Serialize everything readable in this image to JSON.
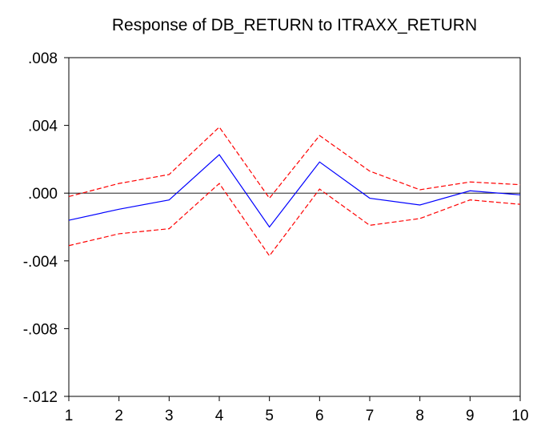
{
  "chart_data": {
    "type": "line",
    "title": "Response of DB_RETURN to ITRAXX_RETURN",
    "x": [
      1,
      2,
      3,
      4,
      5,
      6,
      7,
      8,
      9,
      10
    ],
    "series": [
      {
        "color": "#0000ff",
        "dashed": false,
        "values": [
          -0.0016,
          -0.00095,
          -0.0004,
          0.00227,
          -0.002,
          0.00184,
          -0.0003,
          -0.0007,
          0.00014,
          -0.0001
        ]
      },
      {
        "color": "#ff0000",
        "dashed": true,
        "values": [
          -0.0002,
          0.00057,
          0.0011,
          0.0039,
          -0.0003,
          0.0034,
          0.0013,
          0.0002,
          0.00066,
          0.0005
        ]
      },
      {
        "color": "#ff0000",
        "dashed": true,
        "values": [
          -0.0031,
          -0.0024,
          -0.0021,
          0.00057,
          -0.0037,
          0.00024,
          -0.0019,
          -0.0015,
          -0.0004,
          -0.00066
        ]
      }
    ],
    "xlim": [
      1,
      10
    ],
    "xticks": [
      1,
      2,
      3,
      4,
      5,
      6,
      7,
      8,
      9,
      10
    ],
    "ylim": [
      -0.012,
      0.008
    ],
    "yticks": [
      {
        "value": -0.012,
        "label": "-.012"
      },
      {
        "value": -0.008,
        "label": "-.008"
      },
      {
        "value": -0.004,
        "label": "-.004"
      },
      {
        "value": 0,
        "label": ".000"
      },
      {
        "value": 0.004,
        "label": ".004"
      },
      {
        "value": 0.008,
        "label": ".008"
      }
    ],
    "zero_line": true
  }
}
